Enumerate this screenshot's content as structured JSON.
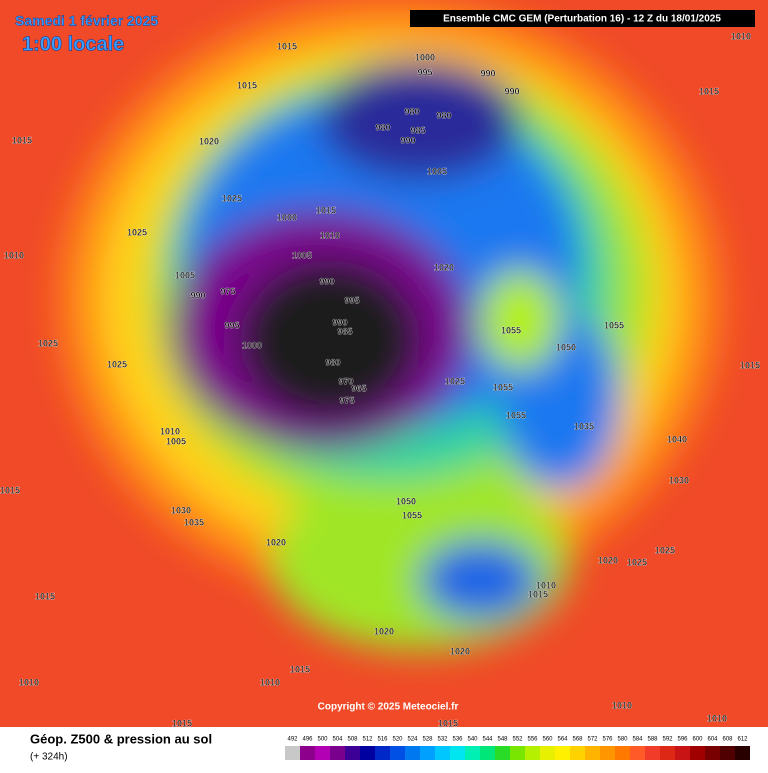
{
  "header": {
    "model": "Ensemble CMC GEM  (Perturbation 16)  -  12 Z du 18/01/2025",
    "date": "Samedi 1 février 2025",
    "time": "1:00 locale"
  },
  "copyright": "Copyright © 2025 Meteociel.fr",
  "footer": {
    "title": "Géop. Z500 & pression au sol",
    "lead": "(+ 324h)"
  },
  "isobars": [
    1015,
    1000,
    995,
    990,
    990,
    980,
    980,
    985,
    990,
    980,
    1015,
    1020,
    1015,
    1010,
    1015,
    1005,
    1025,
    1000,
    1015,
    1010,
    1025,
    1005,
    1020,
    1005,
    990,
    975,
    990,
    995,
    995,
    990,
    985,
    1055,
    1055,
    1010,
    1025,
    1000,
    1050,
    980,
    1025,
    1015,
    970,
    965,
    975,
    1025,
    1055,
    1055,
    1035,
    1010,
    1005,
    1040,
    1030,
    1015,
    1050,
    1055,
    1030,
    1035,
    1020,
    1025,
    1025,
    1020,
    1010,
    1015,
    1015,
    1020,
    1020,
    1015,
    1010,
    1010,
    1015,
    1015,
    1010,
    1010
  ],
  "scale": {
    "values": [
      492,
      496,
      500,
      504,
      508,
      512,
      516,
      520,
      524,
      528,
      532,
      536,
      540,
      544,
      548,
      552,
      556,
      560,
      564,
      568,
      572,
      576,
      580,
      584,
      588,
      592,
      596,
      600,
      604,
      608,
      612
    ],
    "colors": [
      "#c8c8c8",
      "#8c008c",
      "#b400b4",
      "#78008c",
      "#3c0096",
      "#0000a0",
      "#0028c8",
      "#0050e6",
      "#0078f0",
      "#00a0ff",
      "#00c8ff",
      "#00e6f0",
      "#00f0b4",
      "#00e678",
      "#28dc28",
      "#78e600",
      "#b4f000",
      "#e6f000",
      "#fff000",
      "#ffd200",
      "#ffb400",
      "#ff9600",
      "#ff7800",
      "#ff5a28",
      "#f03c28",
      "#dc2814",
      "#c81414",
      "#a00000",
      "#780000",
      "#500000",
      "#280000"
    ]
  }
}
